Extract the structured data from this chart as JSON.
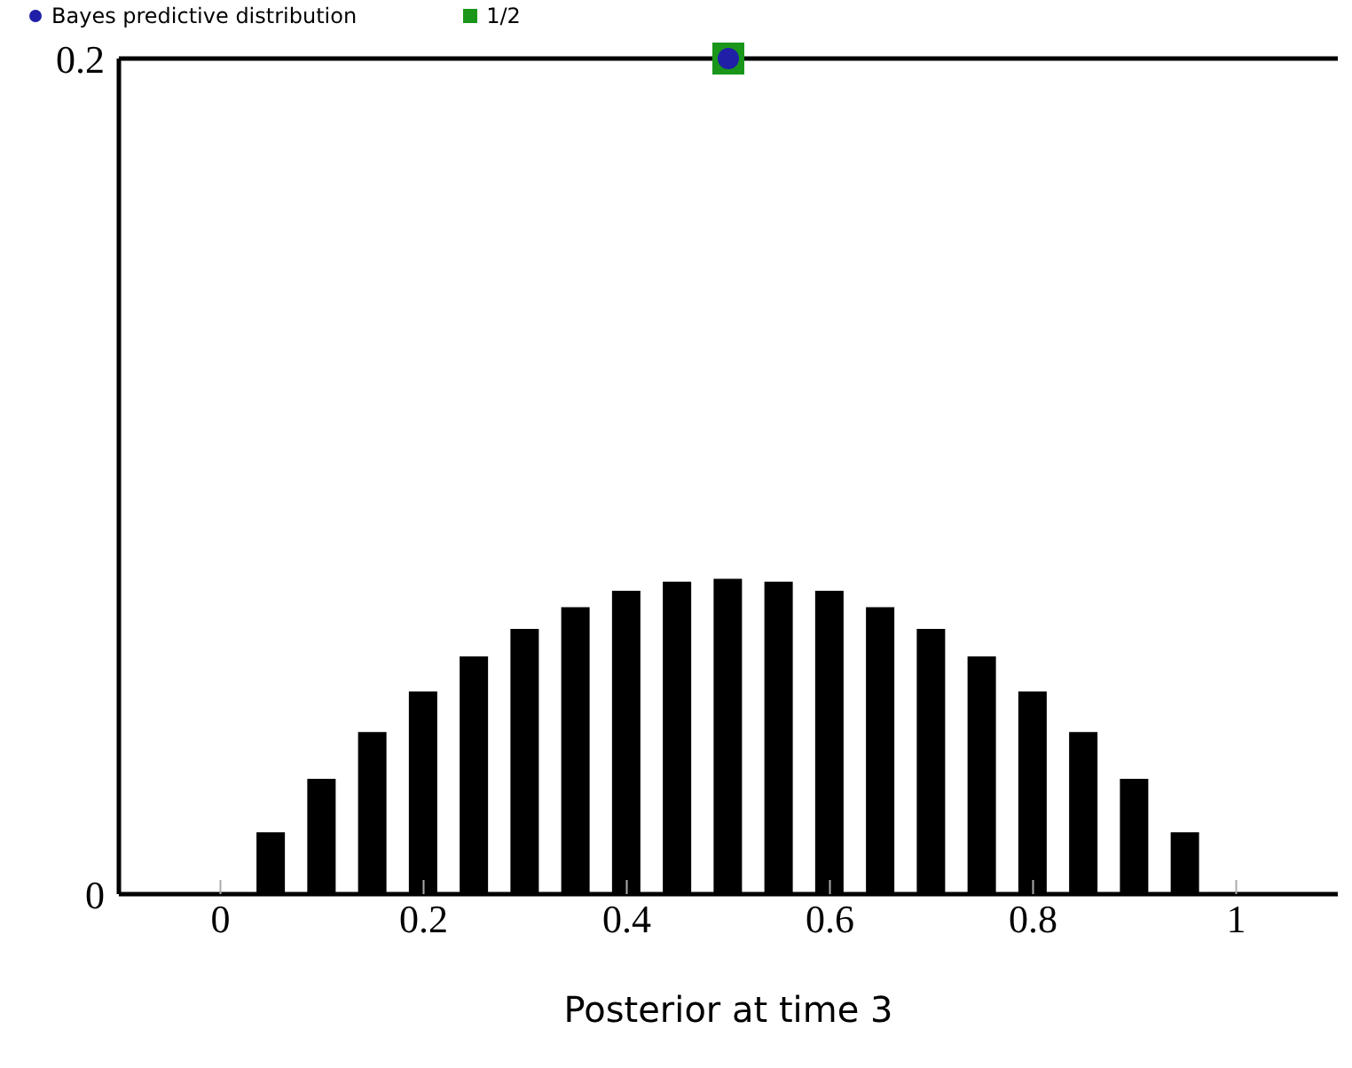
{
  "chart_data": {
    "type": "bar",
    "xlabel": "Posterior at time 3",
    "x": [
      0.05,
      0.1,
      0.15,
      0.2,
      0.25,
      0.3,
      0.35,
      0.4,
      0.45,
      0.5,
      0.55,
      0.6,
      0.65,
      0.7,
      0.75,
      0.8,
      0.85,
      0.9,
      0.95
    ],
    "series": [
      {
        "color": "#000000",
        "values": [
          0.0148,
          0.0276,
          0.0388,
          0.0485,
          0.0569,
          0.0635,
          0.0687,
          0.0726,
          0.0748,
          0.0755,
          0.0748,
          0.0726,
          0.0687,
          0.0635,
          0.0569,
          0.0485,
          0.0388,
          0.0276,
          0.0148
        ]
      },
      {
        "type": "scatter",
        "name": "1/2",
        "color": "#1a961a",
        "marker": "square",
        "x": [
          0.5
        ],
        "values": [
          0.2
        ]
      },
      {
        "type": "scatter",
        "name": "Bayes predictive distribution",
        "color": "#1f1fa8",
        "marker": "circle",
        "x": [
          0.5
        ],
        "values": [
          0.2
        ]
      }
    ],
    "xlim": [
      -0.1,
      1.1
    ],
    "xticks": [
      0,
      0.2,
      0.4,
      0.6,
      0.8,
      1
    ],
    "ylim": [
      0,
      0.2
    ],
    "yticks": [
      0,
      0.2
    ],
    "grid": false,
    "legend": "top"
  }
}
